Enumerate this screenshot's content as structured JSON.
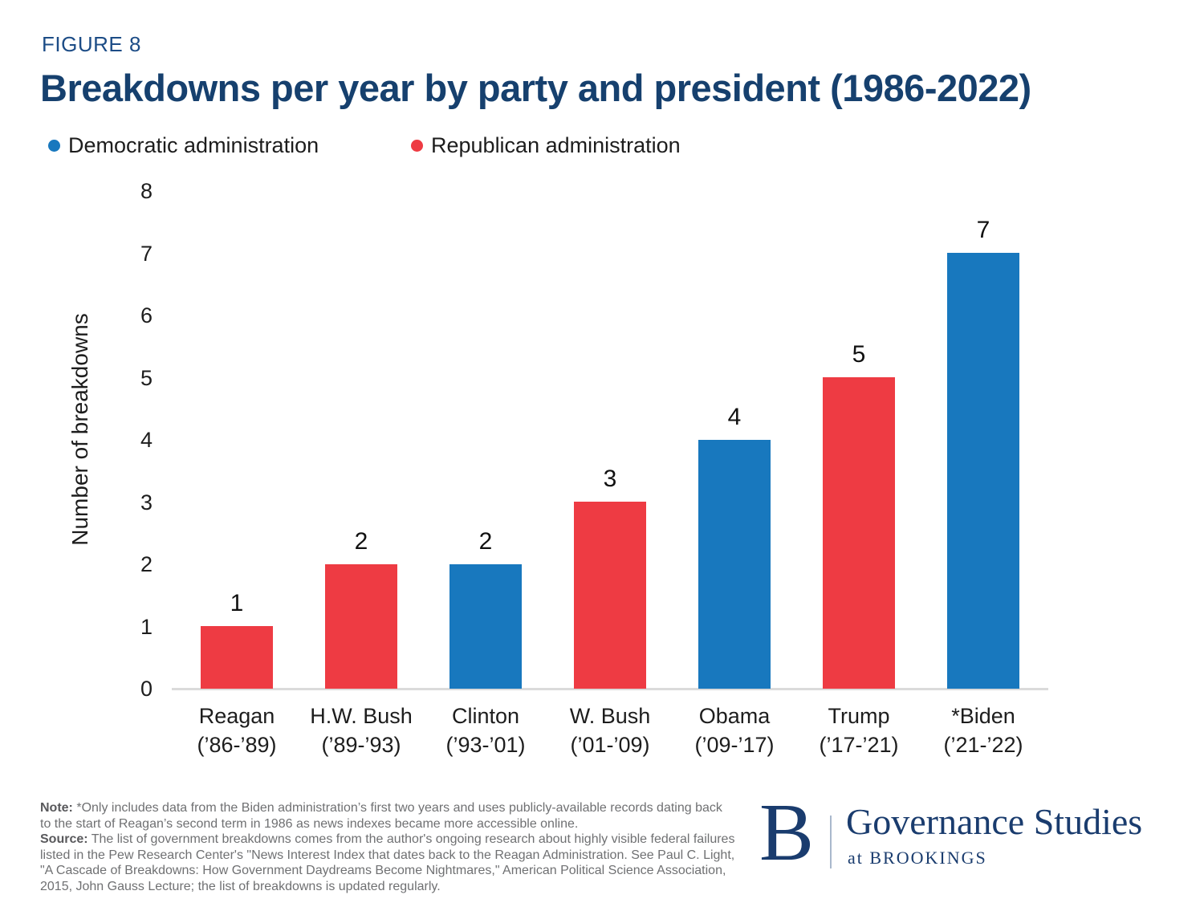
{
  "figure_label": "FIGURE 8",
  "title": "Breakdowns per year by party and president (1986-2022)",
  "legend": [
    {
      "label": "Democratic administration",
      "color": "#1878BE"
    },
    {
      "label": "Republican administration",
      "color": "#EE3B43"
    }
  ],
  "chart_data": {
    "type": "bar",
    "title": "Breakdowns per year by party and president (1986-2022)",
    "xlabel": "",
    "ylabel": "Number of breakdowns",
    "ylim": [
      0,
      8
    ],
    "yticks": [
      0,
      1,
      2,
      3,
      4,
      5,
      6,
      7,
      8
    ],
    "grid": false,
    "legend_position": "top-left",
    "value_labels": true,
    "categories": [
      "Reagan (’86-’89)",
      "H.W. Bush (’89-’93)",
      "Clinton (’93-’01)",
      "W. Bush (’01-’09)",
      "Obama (’09-’17)",
      "Trump (’17-’21)",
      "*Biden (’21-’22)"
    ],
    "bars": [
      {
        "label": "Reagan",
        "years": "(’86-’89)",
        "party": "Republican",
        "value": 1
      },
      {
        "label": "H.W. Bush",
        "years": "(’89-’93)",
        "party": "Republican",
        "value": 2
      },
      {
        "label": "Clinton",
        "years": "(’93-’01)",
        "party": "Democratic",
        "value": 2
      },
      {
        "label": "W. Bush",
        "years": "(’01-’09)",
        "party": "Republican",
        "value": 3
      },
      {
        "label": "Obama",
        "years": "(’09-’17)",
        "party": "Democratic",
        "value": 4
      },
      {
        "label": "Trump",
        "years": "(’17-’21)",
        "party": "Republican",
        "value": 5
      },
      {
        "label": "*Biden",
        "years": "(’21-’22)",
        "party": "Democratic",
        "value": 7
      }
    ],
    "party_colors": {
      "Democratic": "#1878BE",
      "Republican": "#EE3B43"
    }
  },
  "footer": {
    "note_label": "Note:",
    "note_text": " *Only includes data from the Biden administration’s first two years and uses publicly-available records dating back to the start of Reagan’s second term in 1986 as news indexes became more accessible online.",
    "source_label": "Source:",
    "source_text": " The list of government breakdowns comes from the author's ongoing research about highly visible federal failures listed in the Pew Research Center's \"News Interest Index that dates back to the Reagan Administration. See Paul C. Light, \"A Cascade of Breakdowns: How Government Daydreams Become Nightmares,\" American Political Science Association, 2015, John Gauss Lecture; the list of breakdowns is updated regularly."
  },
  "logo": {
    "initial": "B",
    "name": "Governance Studies",
    "tagline": "at BROOKINGS",
    "color": "#1A3C6E"
  },
  "colors": {
    "title_navy": "#16406E",
    "figure_label_navy": "#1C4C86",
    "democratic_blue": "#1878BE",
    "republican_red": "#EE3B43",
    "axis_line_gray": "#DBDBDB",
    "footnote_gray": "#6F7072"
  }
}
